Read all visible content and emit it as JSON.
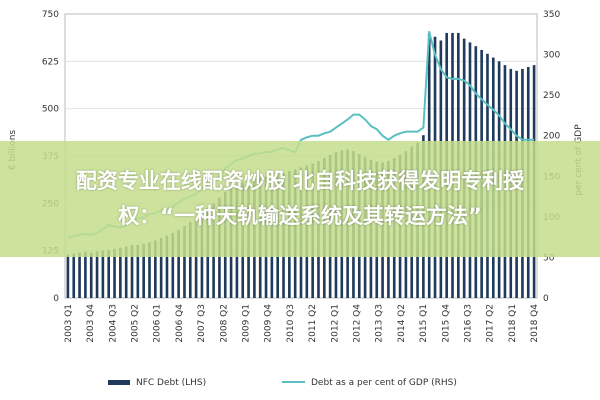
{
  "chart_data": {
    "type": "bar+line",
    "xlabel": "",
    "ylabel_left": "€ billions",
    "ylabel_right": "per cent of GDP",
    "ylim_left": [
      0,
      750
    ],
    "ylim_right": [
      0,
      350
    ],
    "yticks_left": [
      "0",
      "125",
      "250",
      "375",
      "500",
      "625",
      "750"
    ],
    "yticks_right": [
      "0",
      "50",
      "100",
      "150",
      "200",
      "250",
      "300",
      "350"
    ],
    "x_tick_labels": [
      "2003 Q1",
      "2003 Q4",
      "2004 Q3",
      "2005 Q2",
      "2006 Q1",
      "2006 Q4",
      "2007 Q3",
      "2008 Q2",
      "2009 Q1",
      "2009 Q4",
      "2010 Q3",
      "2011 Q2",
      "2012 Q1",
      "2012 Q4",
      "2013 Q3",
      "2014 Q2",
      "2015 Q1",
      "2015 Q4",
      "2016 Q3",
      "2017 Q2",
      "2018 Q1",
      "2018 Q4"
    ],
    "series": [
      {
        "name": "NFC Debt (LHS)",
        "type": "bar",
        "axis": "left",
        "color": "#1f3a5a",
        "values": [
          115,
          117,
          120,
          122,
          120,
          123,
          125,
          127,
          130,
          133,
          136,
          140,
          140,
          143,
          147,
          152,
          158,
          165,
          172,
          180,
          190,
          200,
          210,
          222,
          235,
          250,
          265,
          280,
          290,
          298,
          305,
          310,
          315,
          318,
          320,
          322,
          325,
          330,
          335,
          340,
          345,
          350,
          355,
          362,
          370,
          378,
          385,
          390,
          392,
          388,
          380,
          372,
          365,
          360,
          358,
          362,
          370,
          378,
          388,
          400,
          410,
          430,
          700,
          690,
          680,
          700,
          700,
          700,
          685,
          675,
          665,
          655,
          645,
          635,
          625,
          615,
          605,
          600,
          605,
          610,
          615
        ]
      },
      {
        "name": "Debt as a per cent of GDP (RHS)",
        "type": "line",
        "axis": "right",
        "color": "#5bbfc2",
        "values": [
          75,
          76,
          78,
          79,
          78,
          80,
          85,
          90,
          88,
          87,
          90,
          95,
          98,
          100,
          103,
          105,
          108,
          110,
          112,
          118,
          122,
          125,
          128,
          135,
          140,
          145,
          150,
          160,
          165,
          170,
          172,
          175,
          178,
          178,
          180,
          180,
          183,
          185,
          182,
          180,
          195,
          198,
          200,
          200,
          203,
          205,
          210,
          215,
          220,
          226,
          226,
          220,
          212,
          208,
          200,
          195,
          200,
          203,
          205,
          205,
          205,
          210,
          328,
          300,
          282,
          272,
          270,
          270,
          268,
          262,
          252,
          245,
          238,
          232,
          225,
          215,
          208,
          200,
          195,
          195,
          195
        ]
      }
    ]
  },
  "legend": {
    "bar_label": "NFC Debt (LHS)",
    "line_label": "Debt as a per cent of GDP (RHS)"
  },
  "overlay": {
    "line1": "配资专业在线配资炒股 北自科技获得发明专利授",
    "line2": "权：“一种天轨输送系统及其转运方法”",
    "color": "#c4de8c"
  }
}
